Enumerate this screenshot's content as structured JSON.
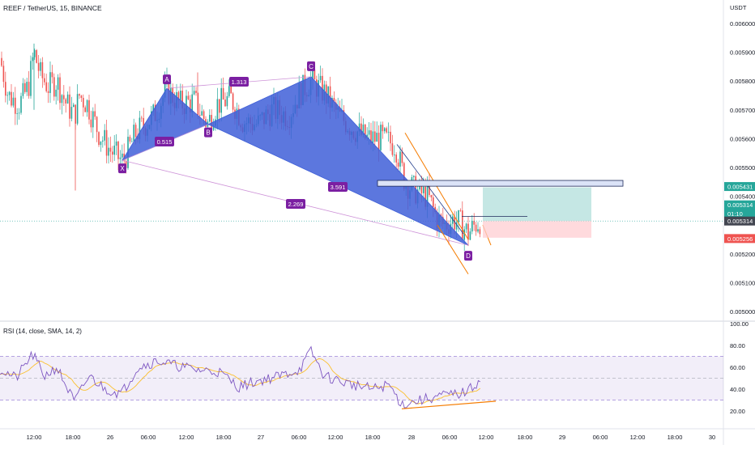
{
  "header": {
    "title": "REEF / TetherUS, 15, BINANCE",
    "currency": "USDT"
  },
  "rsi": {
    "title": "RSI (14, close, SMA, 14, 2)",
    "ticks": [
      "100.00",
      "80.00",
      "60.00",
      "40.00",
      "20.00"
    ]
  },
  "colors": {
    "up": "#26a69a",
    "down": "#ef5350",
    "pattern_fill": "#3f5fd8",
    "pattern_label": "#7b1fa2",
    "channel": "#f57c00",
    "rsi_line": "#7e57c2",
    "rsi_ma": "#fbc02d",
    "profit_zone": "#b2dfdb",
    "loss_zone": "#ffcdd2"
  },
  "chart_data": {
    "type": "candlestick",
    "symbol": "REEF / TetherUS",
    "interval": "15",
    "exchange": "BINANCE",
    "x_ticks": [
      "12:00",
      "18:00",
      "26",
      "06:00",
      "12:00",
      "18:00",
      "27",
      "06:00",
      "12:00",
      "18:00",
      "28",
      "06:00",
      "12:00",
      "18:00",
      "29",
      "06:00",
      "12:00",
      "18:00",
      "30"
    ],
    "y_ticks": [
      "0.006000",
      "0.005900",
      "0.005800",
      "0.005700",
      "0.005600",
      "0.005500",
      "0.005400",
      "0.005200",
      "0.005100",
      "0.005000"
    ],
    "ylim": [
      0.00496,
      0.00606
    ],
    "price_labels": [
      {
        "name": "target",
        "value": "0.005431"
      },
      {
        "name": "last",
        "value": "0.005314",
        "countdown": "01:10"
      },
      {
        "name": "price-line",
        "value": "0.005314"
      },
      {
        "name": "stop",
        "value": "0.005256"
      }
    ],
    "harmonic_pattern": {
      "points": [
        {
          "label": "X",
          "price": 0.005525
        },
        {
          "label": "A",
          "price": 0.005775
        },
        {
          "label": "B",
          "price": 0.00565
        },
        {
          "label": "C",
          "price": 0.005815
        },
        {
          "label": "D",
          "price": 0.00523
        }
      ],
      "ratios": [
        "0.515",
        "1.313",
        "3.591",
        "2.269"
      ]
    },
    "position": {
      "entry": 0.005314,
      "target": 0.005431,
      "stop": 0.005256
    },
    "rsi_levels": [
      70,
      50,
      30
    ]
  }
}
